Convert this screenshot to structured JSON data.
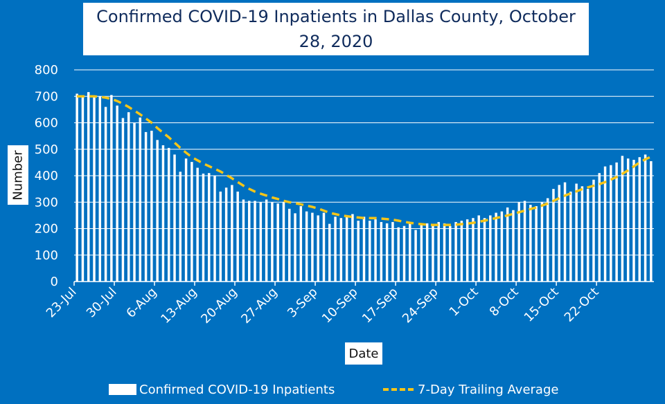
{
  "chart_data": {
    "type": "bar",
    "title": "Confirmed COVID-19 Inpatients in Dallas County, October 28, 2020",
    "xlabel": "Date",
    "ylabel": "Number",
    "ylim": [
      0,
      800
    ],
    "yticks": [
      0,
      100,
      200,
      300,
      400,
      500,
      600,
      700,
      800
    ],
    "xtick_labels": [
      "23-Jul",
      "30-Jul",
      "6-Aug",
      "13-Aug",
      "20-Aug",
      "27-Aug",
      "3-Sep",
      "10-Sep",
      "17-Sep",
      "24-Sep",
      "1-Oct",
      "8-Oct",
      "15-Oct",
      "22-Oct"
    ],
    "grid": true,
    "series": [
      {
        "name": "Confirmed COVID-19 Inpatients",
        "type": "bar",
        "color": "#ffffff",
        "values": [
          710,
          700,
          716,
          700,
          700,
          660,
          705,
          665,
          618,
          640,
          600,
          620,
          565,
          570,
          535,
          515,
          505,
          480,
          415,
          465,
          452,
          430,
          408,
          410,
          400,
          340,
          355,
          365,
          340,
          310,
          305,
          305,
          300,
          310,
          300,
          295,
          300,
          275,
          258,
          285,
          265,
          260,
          250,
          260,
          218,
          245,
          240,
          250,
          255,
          230,
          245,
          230,
          235,
          225,
          220,
          225,
          205,
          210,
          225,
          195,
          215,
          220,
          215,
          225,
          220,
          210,
          225,
          230,
          235,
          240,
          250,
          240,
          250,
          260,
          265,
          280,
          270,
          300,
          305,
          290,
          285,
          300,
          315,
          350,
          365,
          375,
          340,
          370,
          360,
          350,
          385,
          410,
          435,
          440,
          450,
          475,
          465,
          460,
          470,
          480,
          455
        ]
      },
      {
        "name": "7-Day Trailing Average",
        "type": "line",
        "style": "dashed",
        "color": "#F5C518",
        "values": [
          700,
          700,
          700,
          700,
          698,
          695,
          690,
          682,
          672,
          660,
          646,
          632,
          616,
          600,
          580,
          562,
          545,
          525,
          505,
          487,
          470,
          458,
          446,
          436,
          426,
          416,
          403,
          390,
          376,
          362,
          350,
          340,
          332,
          325,
          318,
          312,
          305,
          300,
          296,
          292,
          287,
          282,
          276,
          268,
          260,
          255,
          250,
          247,
          244,
          242,
          240,
          240,
          240,
          238,
          236,
          234,
          230,
          226,
          222,
          219,
          217,
          215,
          214,
          214,
          214,
          214,
          215,
          217,
          219,
          222,
          226,
          230,
          235,
          240,
          245,
          250,
          256,
          262,
          268,
          274,
          280,
          287,
          295,
          305,
          315,
          325,
          333,
          341,
          349,
          356,
          362,
          368,
          376,
          385,
          395,
          407,
          420,
          435,
          450,
          462,
          472
        ]
      }
    ]
  },
  "legend": {
    "bar_label": "Confirmed COVID-19 Inpatients",
    "line_label": "7-Day Trailing Average"
  }
}
